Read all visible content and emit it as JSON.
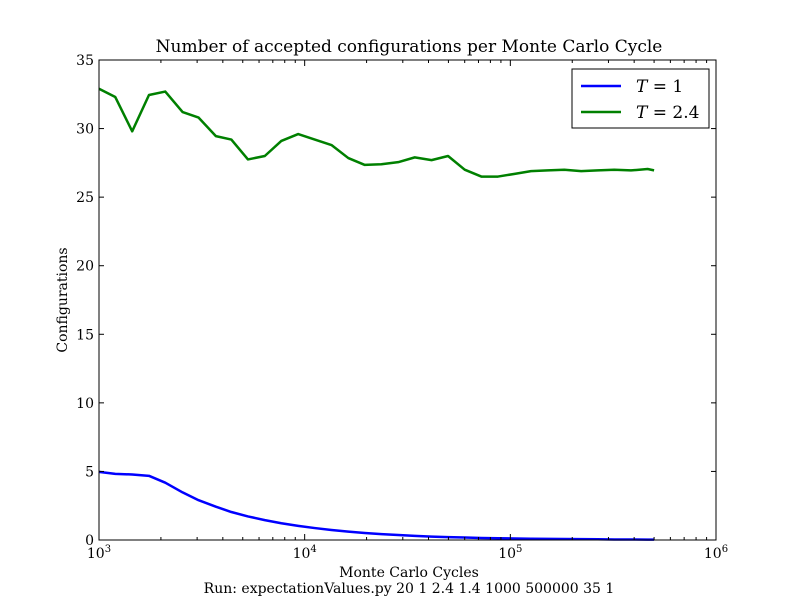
{
  "chart_data": {
    "type": "line",
    "title": "Number of accepted configurations per Monte Carlo Cycle",
    "xlabel": "Monte Carlo Cycles",
    "ylabel": "Configurations",
    "caption": "Run: expectationValues.py 20 1 2.4 1.4 1000 500000 35 1",
    "x_scale": "log",
    "xlim": [
      1000,
      1000000
    ],
    "ylim": [
      0,
      35
    ],
    "x_ticks": [
      {
        "value": 1000,
        "base": "10",
        "exp": "3"
      },
      {
        "value": 10000,
        "base": "10",
        "exp": "4"
      },
      {
        "value": 100000,
        "base": "10",
        "exp": "5"
      },
      {
        "value": 1000000,
        "base": "10",
        "exp": "6"
      }
    ],
    "y_ticks": [
      0,
      5,
      10,
      15,
      20,
      25,
      30,
      35
    ],
    "grid": false,
    "legend_position": "top-right",
    "x": [
      1000,
      1200,
      1450,
      1750,
      2100,
      2550,
      3050,
      3700,
      4400,
      5300,
      6400,
      7700,
      9300,
      11200,
      13500,
      16300,
      19600,
      23600,
      28500,
      34300,
      41400,
      49800,
      60000,
      72300,
      87100,
      105000,
      126000,
      152000,
      183000,
      221000,
      266000,
      320000,
      386000,
      465000,
      500000
    ],
    "series": [
      {
        "name": "T = 1",
        "legend_var": "T",
        "legend_op": "=",
        "legend_val": "1",
        "color": "#0000ff",
        "values": [
          4.97,
          4.82,
          4.78,
          4.68,
          4.18,
          3.47,
          2.9,
          2.43,
          2.04,
          1.72,
          1.45,
          1.22,
          1.03,
          0.87,
          0.73,
          0.61,
          0.51,
          0.43,
          0.36,
          0.3,
          0.25,
          0.21,
          0.18,
          0.15,
          0.13,
          0.11,
          0.09,
          0.08,
          0.07,
          0.06,
          0.05,
          0.04,
          0.04,
          0.03,
          0.03
        ]
      },
      {
        "name": "T = 2.4",
        "legend_var": "T",
        "legend_op": "=",
        "legend_val": "2.4",
        "color": "#008000",
        "values": [
          32.9,
          32.3,
          29.8,
          32.45,
          32.7,
          31.2,
          30.8,
          29.45,
          29.2,
          27.75,
          28.0,
          29.1,
          29.6,
          29.2,
          28.8,
          27.85,
          27.35,
          27.4,
          27.55,
          27.9,
          27.7,
          28.0,
          27.0,
          26.5,
          26.5,
          26.7,
          26.9,
          26.95,
          27.0,
          26.9,
          26.95,
          27.0,
          26.95,
          27.05,
          26.95
        ]
      }
    ]
  }
}
